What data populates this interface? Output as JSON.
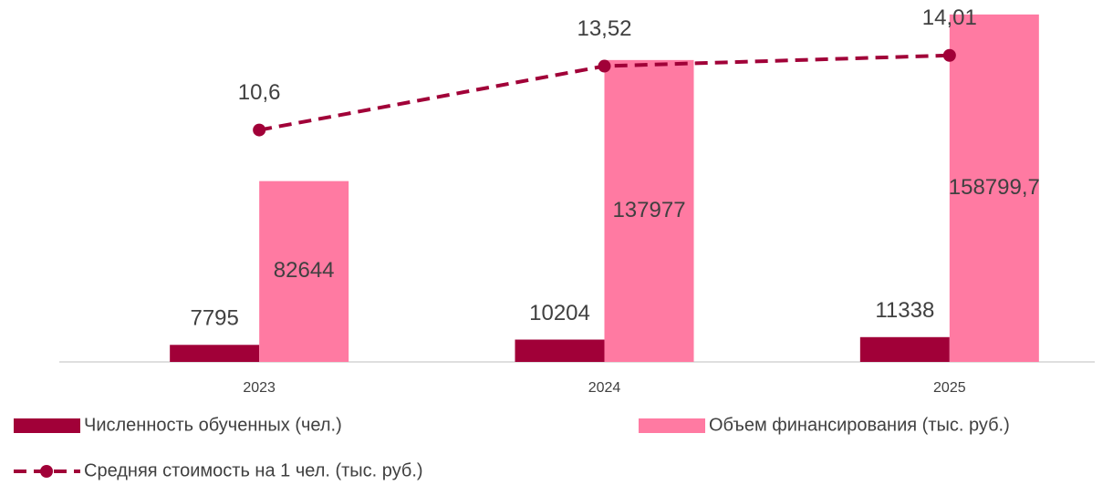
{
  "chart_data": {
    "type": "bar_line",
    "categories": [
      "2023",
      "2024",
      "2025"
    ],
    "series": [
      {
        "name": "Численность обученных (чел.)",
        "color": "#a10038",
        "values": [
          7795,
          10204,
          11338
        ]
      },
      {
        "name": "Объем финансирования (тыс. руб.)",
        "color": "#ff7aa2",
        "values": [
          82644,
          137977,
          158799.7
        ],
        "value_labels": [
          "82644",
          "137977",
          "158799,7"
        ]
      },
      {
        "name": "Средняя стоимость на 1 чел. (тыс. руб.)",
        "color": "#a10038",
        "axis": "y2",
        "type": "line",
        "values": [
          10.6,
          13.52,
          14.01
        ],
        "value_labels": [
          "10,6",
          "13,52",
          "14,01"
        ]
      }
    ],
    "ylim": [
      0,
      165000
    ],
    "y2lim": [
      0,
      16.5
    ],
    "grid": false
  }
}
